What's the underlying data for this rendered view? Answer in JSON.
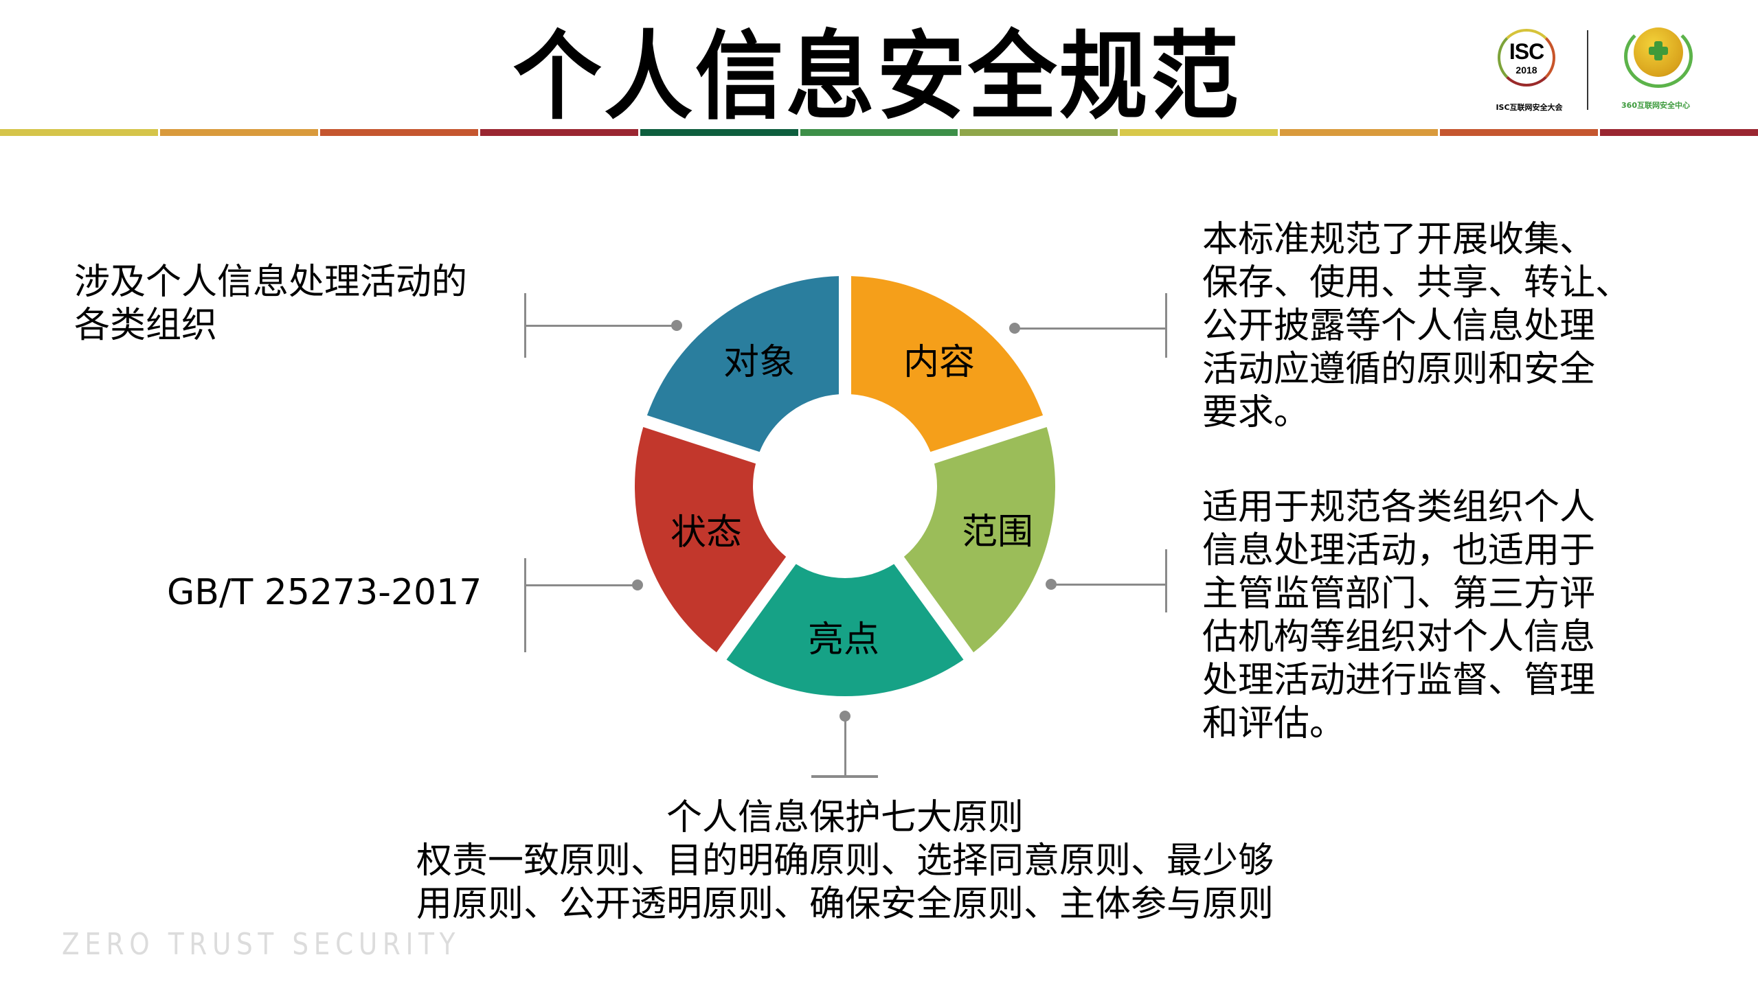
{
  "header": {
    "title": "个人信息安全规范",
    "stripe_colors": [
      "#d5c44a",
      "#d99a3c",
      "#c5562f",
      "#9a2631",
      "#0e5e3e",
      "#3d8f48",
      "#8fa64a",
      "#d8c84a",
      "#d99a3c",
      "#c5562f",
      "#9a2631"
    ]
  },
  "logos": {
    "isc": {
      "main": "ISC",
      "year": "2018",
      "caption": "ISC互联网安全大会"
    },
    "q360": {
      "caption": "360互联网安全中心"
    }
  },
  "chart_data": {
    "type": "pie",
    "style": "donut",
    "title": "个人信息安全规范",
    "categories": [
      "内容",
      "范围",
      "亮点",
      "状态",
      "对象"
    ],
    "values": [
      1,
      1,
      1,
      1,
      1
    ],
    "colors": [
      "#f59f1a",
      "#9bbd59",
      "#16a286",
      "#c2372c",
      "#2a7e9e"
    ],
    "center": [
      1230,
      708
    ],
    "outer_radius": 306,
    "inner_radius": 134
  },
  "donut": {
    "segments": [
      {
        "label": "内容",
        "color": "#f59f1a"
      },
      {
        "label": "范围",
        "color": "#9bbd59"
      },
      {
        "label": "亮点",
        "color": "#16a286"
      },
      {
        "label": "状态",
        "color": "#c2372c"
      },
      {
        "label": "对象",
        "color": "#2a7e9e"
      }
    ]
  },
  "callouts": {
    "object": {
      "lines": [
        "涉及个人信息处理活动的",
        "各类组织"
      ]
    },
    "status": {
      "lines": [
        "GB/T 25273-2017"
      ]
    },
    "content": {
      "lines": [
        "本标准规范了开展收集、",
        "保存、使用、共享、转让、",
        "公开披露等个人信息处理",
        "活动应遵循的原则和安全",
        "要求。"
      ]
    },
    "scope": {
      "lines": [
        "适用于规范各类组织个人",
        "信息处理活动，也适用于",
        "主管监管部门、第三方评",
        "估机构等组织对个人信息",
        "处理活动进行监督、管理",
        "和评估。"
      ]
    },
    "highlight": {
      "heading": "个人信息保护七大原则",
      "lines": [
        "权责一致原则、目的明确原则、选择同意原则、最少够",
        "用原则、公开透明原则、确保安全原则、主体参与原则"
      ]
    }
  },
  "connector_color": "#8a8a8a",
  "watermark": "ZERO TRUST SECURITY"
}
